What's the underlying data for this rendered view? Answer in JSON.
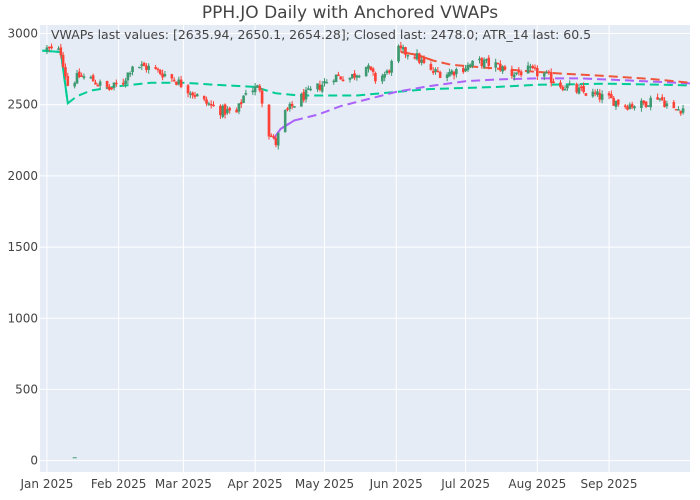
{
  "chart_data": {
    "type": "candlestick",
    "title": "PPH.JO Daily with Anchored VWAPs",
    "annotation": "VWAPs last values: [2635.94, 2650.1, 2654.28]; Closed last: 2478.0; ATR_14 last: 60.5",
    "xlabel": "",
    "ylabel": "",
    "ylim": [
      -80,
      3060
    ],
    "y_ticks": [
      0,
      500,
      1000,
      1500,
      2000,
      2500,
      3000
    ],
    "x_ticks": [
      {
        "label": "Jan 2025",
        "date": "2025-01-01"
      },
      {
        "label": "Feb 2025",
        "date": "2025-02-01"
      },
      {
        "label": "Mar 2025",
        "date": "2025-03-01"
      },
      {
        "label": "Apr 2025",
        "date": "2025-04-01"
      },
      {
        "label": "May 2025",
        "date": "2025-05-01"
      },
      {
        "label": "Jun 2025",
        "date": "2025-06-01"
      },
      {
        "label": "Jul 2025",
        "date": "2025-07-01"
      },
      {
        "label": "Aug 2025",
        "date": "2025-08-01"
      },
      {
        "label": "Sep 2025",
        "date": "2025-09-01"
      }
    ],
    "xlim": [
      "2024-12-29",
      "2025-10-06"
    ],
    "grid": true,
    "background": "#E5ECF6",
    "colors": {
      "up": "#3D9970",
      "down": "#FF4136",
      "vwap_1": "#00CC96",
      "vwap_2": "#AB63FA",
      "vwap_3": "#EF553B"
    },
    "close_anchors": [
      [
        "2025-01-01",
        2890
      ],
      [
        "2025-01-07",
        2870
      ],
      [
        "2025-01-10",
        2640
      ],
      [
        "2025-01-15",
        2700
      ],
      [
        "2025-01-20",
        2680
      ],
      [
        "2025-01-24",
        2640
      ],
      [
        "2025-01-28",
        2610
      ],
      [
        "2025-02-03",
        2660
      ],
      [
        "2025-02-07",
        2780
      ],
      [
        "2025-02-14",
        2760
      ],
      [
        "2025-02-20",
        2720
      ],
      [
        "2025-02-25",
        2680
      ],
      [
        "2025-03-03",
        2610
      ],
      [
        "2025-03-10",
        2520
      ],
      [
        "2025-03-17",
        2460
      ],
      [
        "2025-03-24",
        2440
      ],
      [
        "2025-03-28",
        2600
      ],
      [
        "2025-04-03",
        2620
      ],
      [
        "2025-04-07",
        2300
      ],
      [
        "2025-04-10",
        2230
      ],
      [
        "2025-04-14",
        2440
      ],
      [
        "2025-04-21",
        2550
      ],
      [
        "2025-04-28",
        2620
      ],
      [
        "2025-05-05",
        2700
      ],
      [
        "2025-05-12",
        2690
      ],
      [
        "2025-05-19",
        2770
      ],
      [
        "2025-05-23",
        2680
      ],
      [
        "2025-05-28",
        2720
      ],
      [
        "2025-06-02",
        2880
      ],
      [
        "2025-06-09",
        2850
      ],
      [
        "2025-06-16",
        2730
      ],
      [
        "2025-06-23",
        2720
      ],
      [
        "2025-06-30",
        2760
      ],
      [
        "2025-07-07",
        2800
      ],
      [
        "2025-07-14",
        2780
      ],
      [
        "2025-07-21",
        2720
      ],
      [
        "2025-07-28",
        2740
      ],
      [
        "2025-08-04",
        2710
      ],
      [
        "2025-08-11",
        2640
      ],
      [
        "2025-08-18",
        2600
      ],
      [
        "2025-08-25",
        2570
      ],
      [
        "2025-09-01",
        2540
      ],
      [
        "2025-09-08",
        2500
      ],
      [
        "2025-09-15",
        2500
      ],
      [
        "2025-09-22",
        2560
      ],
      [
        "2025-09-29",
        2460
      ],
      [
        "2025-10-03",
        2478
      ]
    ],
    "outlier": {
      "date": "2025-01-13",
      "value": 20
    },
    "vwaps": [
      {
        "start_date": "2024-12-30",
        "points": [
          [
            "2024-12-30",
            2880
          ],
          [
            "2025-01-07",
            2870
          ],
          [
            "2025-01-10",
            2510
          ],
          [
            "2025-01-14",
            2560
          ],
          [
            "2025-01-20",
            2600
          ],
          [
            "2025-02-01",
            2630
          ],
          [
            "2025-02-15",
            2655
          ],
          [
            "2025-03-01",
            2655
          ],
          [
            "2025-03-15",
            2640
          ],
          [
            "2025-04-01",
            2625
          ],
          [
            "2025-04-10",
            2580
          ],
          [
            "2025-04-20",
            2565
          ],
          [
            "2025-05-15",
            2565
          ],
          [
            "2025-06-01",
            2590
          ],
          [
            "2025-06-15",
            2610
          ],
          [
            "2025-07-15",
            2625
          ],
          [
            "2025-08-01",
            2640
          ],
          [
            "2025-09-01",
            2648
          ],
          [
            "2025-09-25",
            2640
          ],
          [
            "2025-10-06",
            2636
          ]
        ]
      },
      {
        "start_date": "2025-04-09",
        "points": [
          [
            "2025-04-09",
            2260
          ],
          [
            "2025-04-12",
            2330
          ],
          [
            "2025-04-18",
            2390
          ],
          [
            "2025-04-28",
            2430
          ],
          [
            "2025-05-08",
            2490
          ],
          [
            "2025-05-20",
            2540
          ],
          [
            "2025-06-01",
            2590
          ],
          [
            "2025-06-15",
            2630
          ],
          [
            "2025-07-01",
            2665
          ],
          [
            "2025-07-15",
            2678
          ],
          [
            "2025-08-01",
            2685
          ],
          [
            "2025-08-20",
            2685
          ],
          [
            "2025-09-10",
            2670
          ],
          [
            "2025-10-06",
            2650
          ]
        ]
      },
      {
        "start_date": "2025-06-03",
        "points": [
          [
            "2025-06-03",
            2870
          ],
          [
            "2025-06-10",
            2850
          ],
          [
            "2025-06-17",
            2810
          ],
          [
            "2025-06-25",
            2780
          ],
          [
            "2025-07-10",
            2760
          ],
          [
            "2025-07-25",
            2740
          ],
          [
            "2025-08-10",
            2720
          ],
          [
            "2025-09-01",
            2700
          ],
          [
            "2025-09-20",
            2680
          ],
          [
            "2025-10-06",
            2654
          ]
        ]
      }
    ]
  }
}
